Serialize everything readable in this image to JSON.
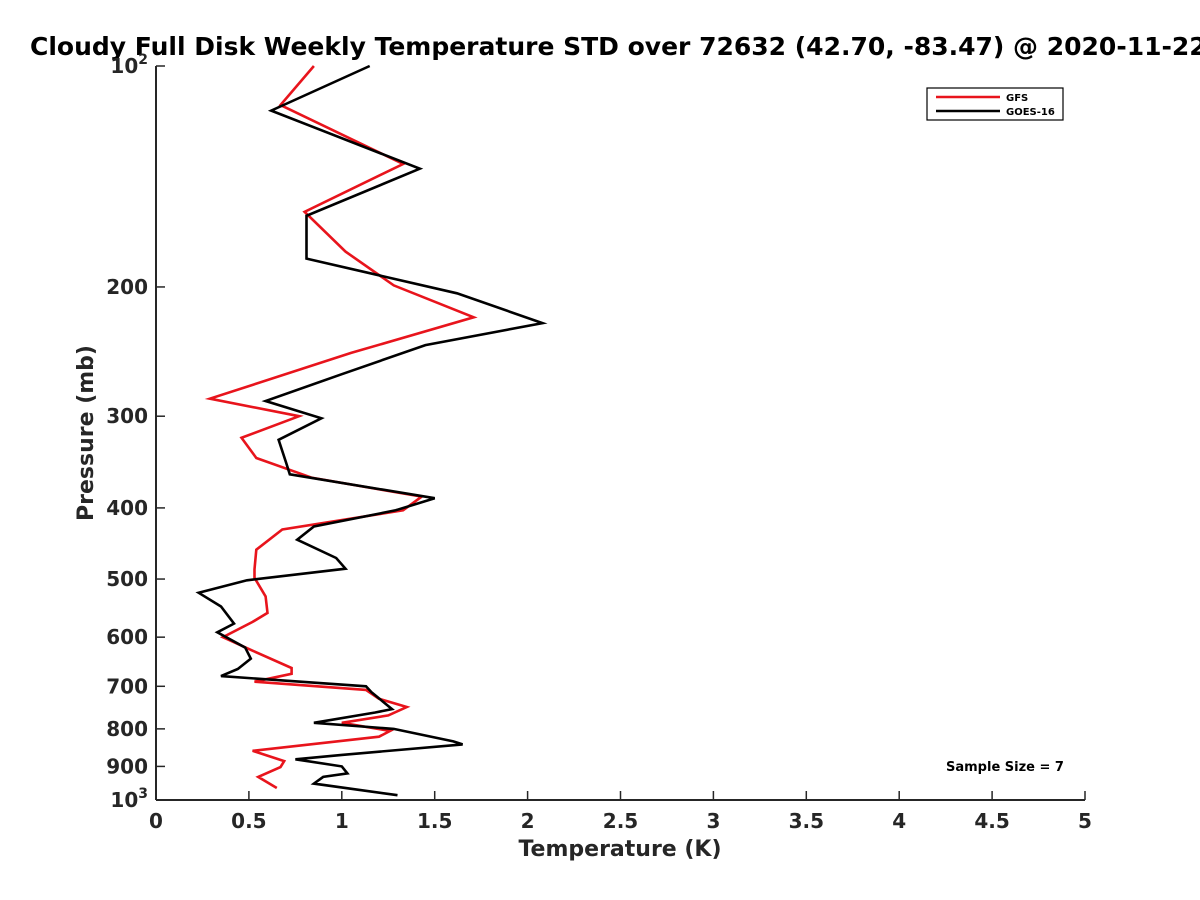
{
  "chart_data": {
    "type": "line",
    "title": "Cloudy Full Disk Weekly Temperature STD over 72632 (42.70, -83.47) @ 2020-11-22",
    "xlabel": "Temperature (K)",
    "ylabel": "Pressure (mb)",
    "xlim": [
      0,
      5
    ],
    "ylim": [
      1000,
      100
    ],
    "y_scale": "log",
    "y_reversed": true,
    "grid": false,
    "legend_position": "top-right",
    "x_ticks": [
      0,
      0.5,
      1,
      1.5,
      2,
      2.5,
      3,
      3.5,
      4,
      4.5,
      5
    ],
    "x_tick_labels": [
      "0",
      "0.5",
      "1",
      "1.5",
      "2",
      "2.5",
      "3",
      "3.5",
      "4",
      "4.5",
      "5"
    ],
    "y_ticks": [
      100,
      200,
      300,
      400,
      500,
      600,
      700,
      800,
      900,
      1000
    ],
    "y_tick_labels": [
      {
        "base": "10",
        "exp": "2"
      },
      {
        "base": "200",
        "exp": ""
      },
      {
        "base": "300",
        "exp": ""
      },
      {
        "base": "400",
        "exp": ""
      },
      {
        "base": "500",
        "exp": ""
      },
      {
        "base": "600",
        "exp": ""
      },
      {
        "base": "700",
        "exp": ""
      },
      {
        "base": "800",
        "exp": ""
      },
      {
        "base": "900",
        "exp": ""
      },
      {
        "base": "10",
        "exp": "3"
      }
    ],
    "annotation": "Sample Size = 7",
    "series": [
      {
        "name": "GFS",
        "color": "#e8141c",
        "points": [
          [
            0.85,
            100
          ],
          [
            0.67,
            113
          ],
          [
            1.33,
            136
          ],
          [
            0.8,
            158
          ],
          [
            1.02,
            179
          ],
          [
            1.28,
            199
          ],
          [
            1.71,
            220
          ],
          [
            1.05,
            246
          ],
          [
            0.29,
            284
          ],
          [
            0.77,
            300
          ],
          [
            0.46,
            321
          ],
          [
            0.54,
            342
          ],
          [
            0.84,
            364
          ],
          [
            1.43,
            386
          ],
          [
            1.33,
            403
          ],
          [
            0.68,
            428
          ],
          [
            0.54,
            456
          ],
          [
            0.53,
            485
          ],
          [
            0.53,
            498
          ],
          [
            0.59,
            528
          ],
          [
            0.6,
            556
          ],
          [
            0.52,
            572
          ],
          [
            0.36,
            600
          ],
          [
            0.52,
            626
          ],
          [
            0.73,
            661
          ],
          [
            0.73,
            673
          ],
          [
            0.53,
            690
          ],
          [
            1.13,
            708
          ],
          [
            1.2,
            728
          ],
          [
            1.35,
            747
          ],
          [
            1.25,
            767
          ],
          [
            1.0,
            785
          ],
          [
            1.26,
            805
          ],
          [
            1.2,
            820
          ],
          [
            0.52,
            857
          ],
          [
            0.69,
            885
          ],
          [
            0.67,
            902
          ],
          [
            0.55,
            930
          ],
          [
            0.65,
            963
          ]
        ]
      },
      {
        "name": "GOES-16",
        "color": "#000000",
        "points": [
          [
            1.15,
            100
          ],
          [
            0.62,
            115
          ],
          [
            1.42,
            138
          ],
          [
            0.81,
            160
          ],
          [
            0.81,
            183
          ],
          [
            1.62,
            204
          ],
          [
            2.08,
            224
          ],
          [
            1.45,
            240
          ],
          [
            1.0,
            263
          ],
          [
            0.59,
            286
          ],
          [
            0.89,
            302
          ],
          [
            0.66,
            323
          ],
          [
            0.7,
            347
          ],
          [
            0.72,
            360
          ],
          [
            1.5,
            388
          ],
          [
            1.29,
            403
          ],
          [
            0.85,
            424
          ],
          [
            0.76,
            442
          ],
          [
            0.97,
            468
          ],
          [
            1.02,
            484
          ],
          [
            0.49,
            502
          ],
          [
            0.23,
            522
          ],
          [
            0.35,
            545
          ],
          [
            0.42,
            575
          ],
          [
            0.33,
            591
          ],
          [
            0.48,
            620
          ],
          [
            0.51,
            642
          ],
          [
            0.44,
            663
          ],
          [
            0.35,
            678
          ],
          [
            1.13,
            700
          ],
          [
            1.16,
            713
          ],
          [
            1.27,
            752
          ],
          [
            1.18,
            760
          ],
          [
            0.85,
            785
          ],
          [
            1.28,
            800
          ],
          [
            1.6,
            832
          ],
          [
            1.65,
            840
          ],
          [
            1.0,
            868
          ],
          [
            0.75,
            880
          ],
          [
            1.0,
            900
          ],
          [
            1.03,
            920
          ],
          [
            0.9,
            930
          ],
          [
            0.85,
            950
          ],
          [
            1.3,
            985
          ]
        ]
      }
    ]
  }
}
